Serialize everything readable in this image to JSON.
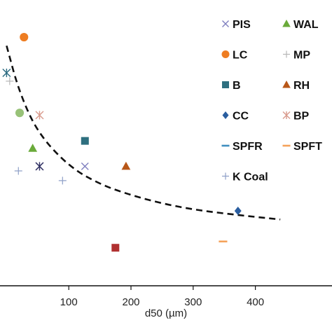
{
  "chart_data": {
    "type": "scatter",
    "title": "",
    "xlabel": "d50 (µm)",
    "ylabel": "",
    "xlim": [
      -8,
      445
    ],
    "ylim": [
      0,
      1
    ],
    "x_ticks": [
      100,
      200,
      300,
      400
    ],
    "grid": false,
    "legend_position": "top-right",
    "series": [
      {
        "name": "PIS",
        "marker": "x",
        "color": "#7f7fbf",
        "points": [
          [
            53,
            0.418
          ],
          [
            126,
            0.418
          ]
        ]
      },
      {
        "name": "WAL",
        "marker": "triangle",
        "color": "#6aaa3a",
        "points": [
          [
            42,
            0.481
          ]
        ]
      },
      {
        "name": "LC",
        "marker": "circle",
        "color": "#ee7d22",
        "points": [
          [
            28,
            0.87
          ]
        ]
      },
      {
        "name": "MP",
        "marker": "plus",
        "color": "#b8b8b8",
        "points": [
          [
            5,
            0.716
          ]
        ]
      },
      {
        "name": "B",
        "marker": "square",
        "color": "#2e6f7f",
        "points": [
          [
            126,
            0.507
          ]
        ]
      },
      {
        "name": "RH",
        "marker": "triangle",
        "color": "#b85718",
        "points": [
          [
            192,
            0.418
          ]
        ]
      },
      {
        "name": "CC",
        "marker": "diamond",
        "color": "#2a5ea0",
        "points": [
          [
            372,
            0.262
          ]
        ]
      },
      {
        "name": "BP",
        "marker": "asterisk",
        "color": "#d99a8c",
        "points": [
          [
            53,
            0.597
          ]
        ]
      },
      {
        "name": "SPFR",
        "marker": "dash",
        "color": "#3f8fbf",
        "points": []
      },
      {
        "name": "SPFT",
        "marker": "dash",
        "color": "#f5a25a",
        "points": [
          [
            348,
            0.155
          ]
        ]
      },
      {
        "name": "K Coal",
        "marker": "plus",
        "color": "#8fa0c8",
        "points": [
          [
            19,
            0.402
          ],
          [
            90,
            0.368
          ]
        ]
      }
    ],
    "unlabeled_points": [
      {
        "marker": "circle",
        "color": "#98c278",
        "x": 21,
        "y": 0.605
      },
      {
        "marker": "asterisk",
        "color": "#303060",
        "x": 53,
        "y": 0.418
      },
      {
        "marker": "asterisk",
        "color": "#2a6a80",
        "x": 0,
        "y": 0.745
      },
      {
        "marker": "square",
        "color": "#b03030",
        "x": 175,
        "y": 0.133
      }
    ],
    "trend_line": {
      "style": "dashed",
      "color": "#111111",
      "points": [
        [
          0,
          0.84
        ],
        [
          20,
          0.68
        ],
        [
          50,
          0.535
        ],
        [
          100,
          0.418
        ],
        [
          150,
          0.355
        ],
        [
          200,
          0.317
        ],
        [
          250,
          0.288
        ],
        [
          300,
          0.267
        ],
        [
          350,
          0.253
        ],
        [
          400,
          0.241
        ],
        [
          440,
          0.232
        ]
      ]
    }
  }
}
